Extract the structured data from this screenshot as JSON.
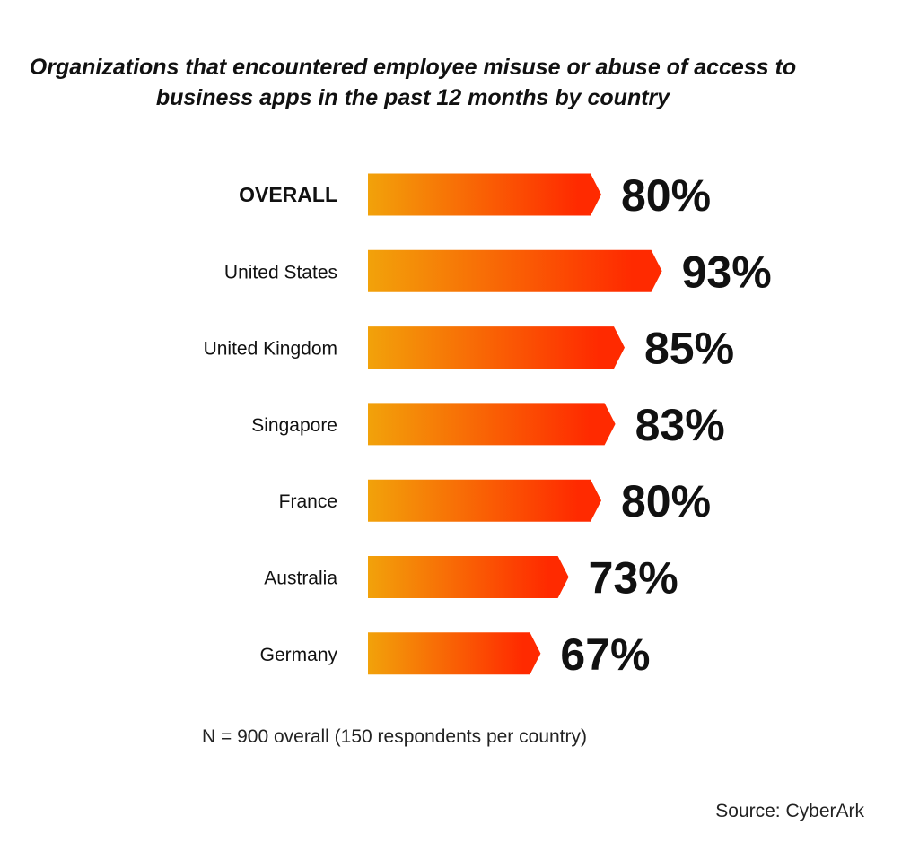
{
  "chart_data": {
    "type": "bar",
    "orientation": "horizontal",
    "title": "Organizations that encountered employee misuse or abuse of access to business apps in the past 12 months by country",
    "categories": [
      "OVERALL",
      "United States",
      "United Kingdom",
      "Singapore",
      "France",
      "Australia",
      "Germany"
    ],
    "values": [
      80,
      93,
      85,
      83,
      80,
      73,
      67
    ],
    "value_labels": [
      "80%",
      "93%",
      "85%",
      "83%",
      "80%",
      "73%",
      "67%"
    ],
    "unit": "%",
    "gradient": {
      "start": "#f2a20a",
      "end": "#ff2a00"
    },
    "grid": false,
    "legend": "none"
  },
  "note": "N = 900 overall (150 respondents per country)",
  "source": "Source: CyberArk"
}
